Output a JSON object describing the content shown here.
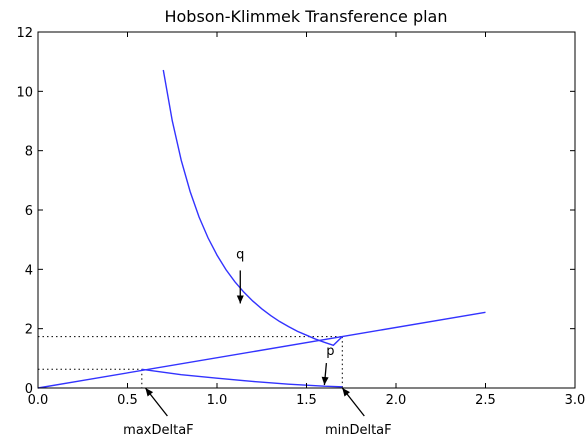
{
  "chart_data": {
    "type": "line",
    "title": "Hobson-Klimmek Transference plan",
    "xlabel": "",
    "ylabel": "",
    "xlim": [
      0.0,
      3.0
    ],
    "ylim": [
      0,
      12
    ],
    "xticks": [
      0.0,
      0.5,
      1.0,
      1.5,
      2.0,
      2.5,
      3.0
    ],
    "xtick_labels": [
      "0.0",
      "0.5",
      "1.0",
      "1.5",
      "2.0",
      "2.5",
      "3.0"
    ],
    "yticks": [
      0,
      2,
      4,
      6,
      8,
      10,
      12
    ],
    "ytick_labels": [
      "0",
      "2",
      "4",
      "6",
      "8",
      "10",
      "12"
    ],
    "grid": false,
    "line_color": "#3333ff",
    "series": [
      {
        "id": "q",
        "x": [
          0.7,
          0.75,
          0.8,
          0.85,
          0.9,
          0.95,
          1.0,
          1.05,
          1.1,
          1.15,
          1.2,
          1.25,
          1.3,
          1.35,
          1.4,
          1.45,
          1.5,
          1.55,
          1.6,
          1.65,
          1.7
        ],
        "y": [
          10.72,
          9.01,
          7.68,
          6.62,
          5.76,
          5.06,
          4.48,
          3.99,
          3.58,
          3.23,
          2.93,
          2.67,
          2.44,
          2.24,
          2.07,
          1.91,
          1.78,
          1.65,
          1.54,
          1.44,
          1.73
        ]
      },
      {
        "id": "ray",
        "x": [
          0.0,
          2.5
        ],
        "y": [
          0.0,
          2.55
        ]
      },
      {
        "id": "p",
        "x": [
          0.58,
          0.8,
          1.0,
          1.2,
          1.4,
          1.6,
          1.7
        ],
        "y": [
          0.63,
          0.45,
          0.33,
          0.22,
          0.13,
          0.06,
          0.04
        ]
      }
    ],
    "reference_lines": [
      {
        "x": 1.7,
        "y": 1.73
      },
      {
        "x": 0.58,
        "y": 0.63
      }
    ],
    "annotations": [
      {
        "text": "q",
        "point_x": 1.13,
        "point_y": 2.85
      },
      {
        "text": "p",
        "point_x": 1.6,
        "point_y": 0.1
      },
      {
        "text": "maxDeltaF",
        "point_x": 0.6,
        "point_y": 0.0
      },
      {
        "text": "minDeltaF",
        "point_x": 1.7,
        "point_y": 0.0
      }
    ]
  }
}
